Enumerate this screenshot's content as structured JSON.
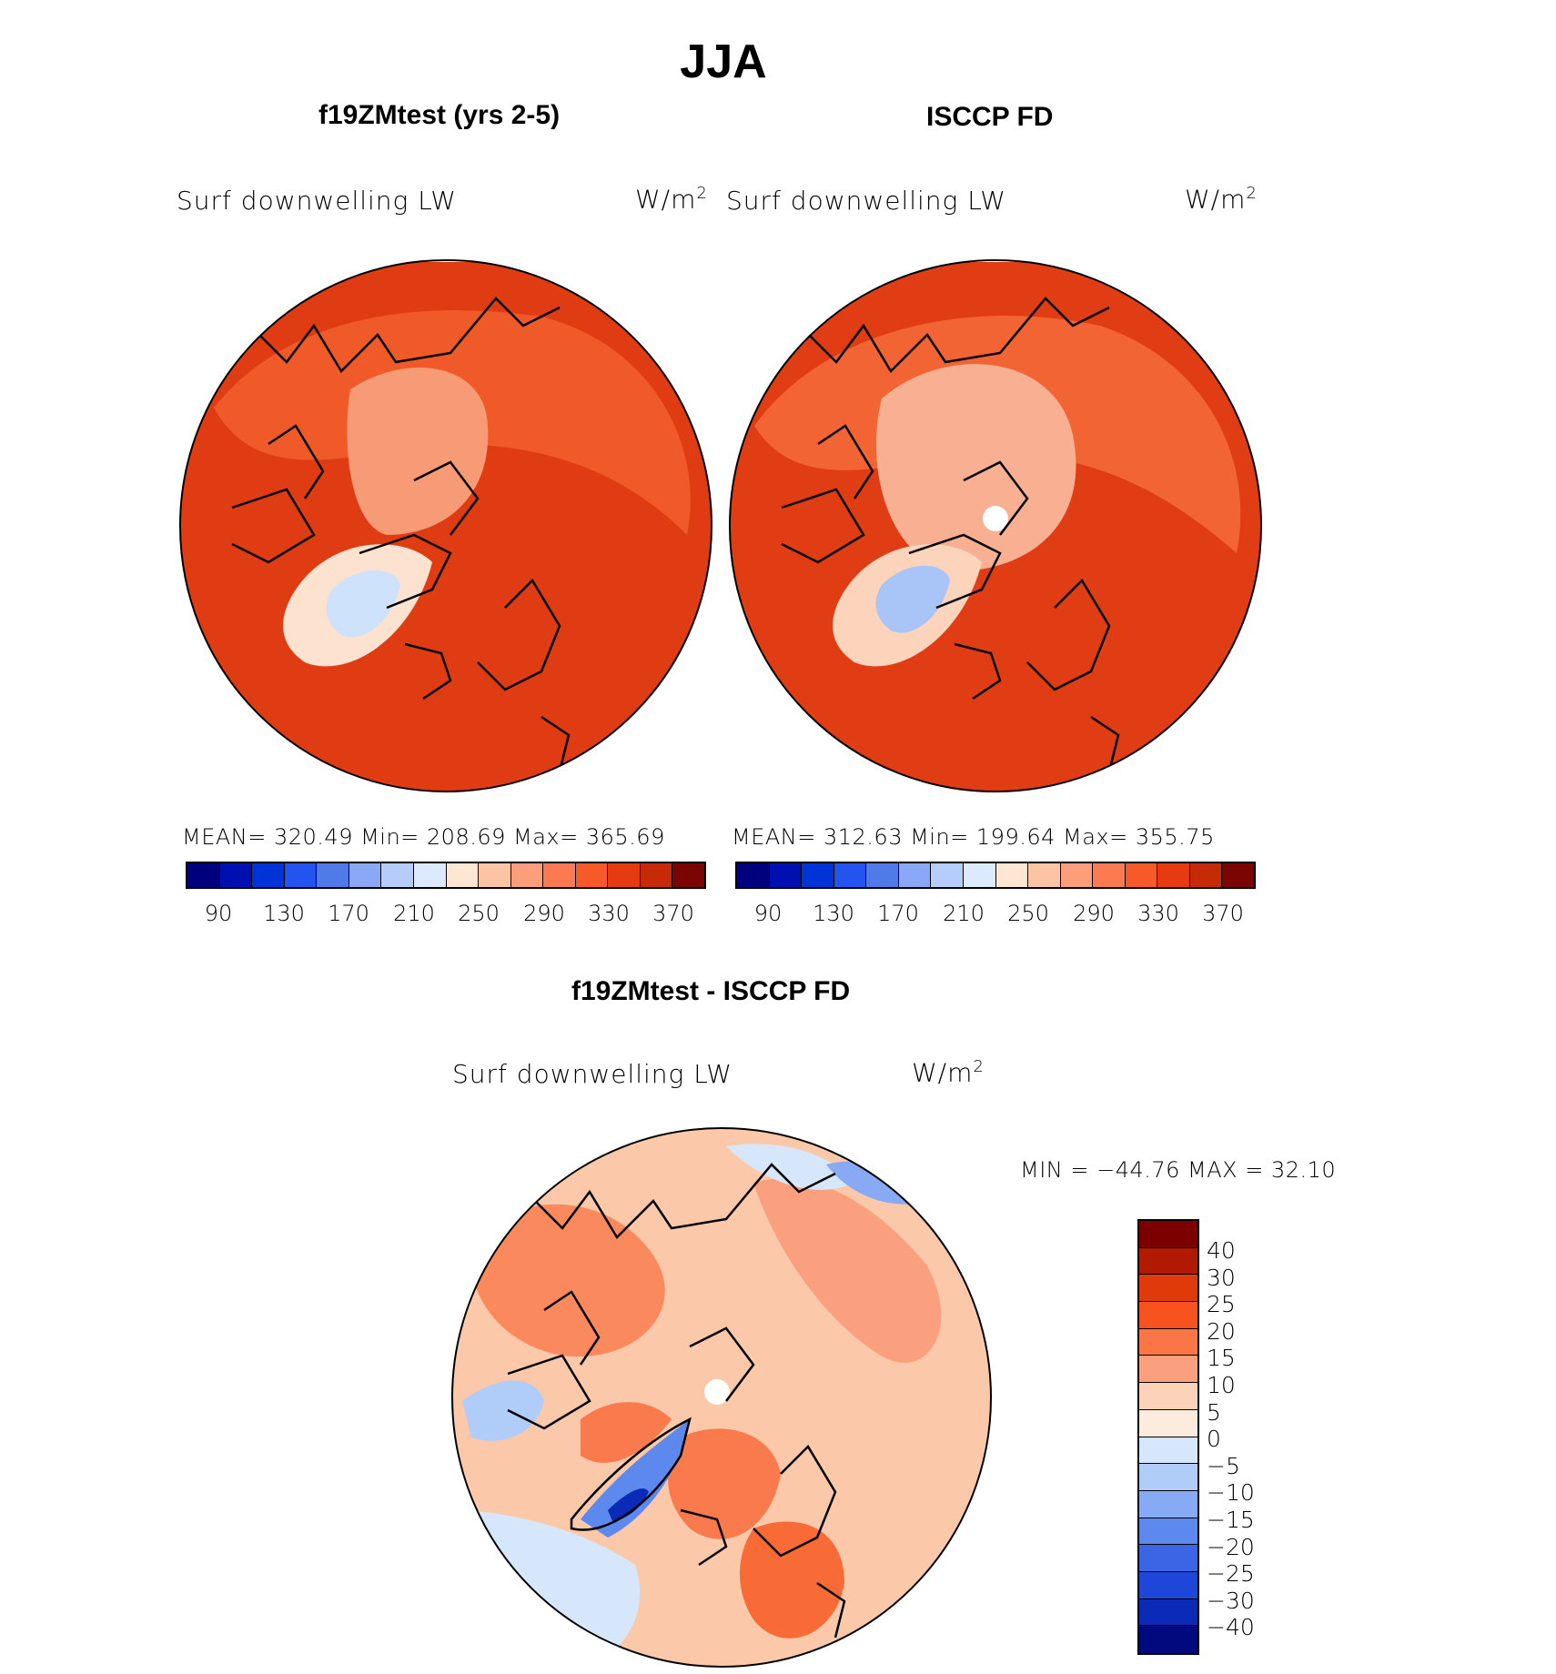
{
  "title": "JJA",
  "panels": [
    {
      "id": "model",
      "title": "f19ZMtest (yrs 2-5)",
      "subtitle": "Surf downwelling LW",
      "units": "W/m",
      "units_sup": "2",
      "stats": "MEAN=  320.49    Min=  208.69    Max=  365.69"
    },
    {
      "id": "obs",
      "title": "ISCCP FD",
      "subtitle": "Surf downwelling LW",
      "units": "W/m",
      "units_sup": "2",
      "stats": "MEAN=  312.63    Min=  199.64    Max=  355.75"
    },
    {
      "id": "diff",
      "title": "f19ZMtest - ISCCP FD",
      "subtitle": "Surf downwelling LW",
      "units": "W/m",
      "units_sup": "2",
      "stats": "MIN  =  −44.76  MAX  =    32.10"
    }
  ],
  "abs_colorbar": {
    "colors": [
      "#00007f",
      "#0010b0",
      "#0034d8",
      "#2255f0",
      "#4f7ae8",
      "#8aa8f5",
      "#b6cdfb",
      "#dbeafd",
      "#fee6d2",
      "#fdc3a5",
      "#fc9e79",
      "#fb7a4f",
      "#f75a28",
      "#e63b10",
      "#c72a06",
      "#a01a03",
      "#7a0502"
    ],
    "ticks": [
      "90",
      "130",
      "170",
      "210",
      "250",
      "290",
      "330",
      "370"
    ]
  },
  "diff_colorbar": {
    "colors": [
      "#7d0000",
      "#b21a00",
      "#e03a0a",
      "#f8531e",
      "#fa7646",
      "#fba07e",
      "#fcd2b8",
      "#fdecdd",
      "#d6e7fb",
      "#b0ccf9",
      "#88aaf4",
      "#5d88ee",
      "#3a66e6",
      "#1e46d8",
      "#0c2ab8",
      "#000a7f"
    ],
    "ticks": [
      "40",
      "30",
      "25",
      "20",
      "15",
      "10",
      "5",
      "0",
      "−5",
      "−10",
      "−15",
      "−20",
      "−25",
      "−30",
      "−40"
    ]
  },
  "map_colors": {
    "model_base": "#e8441a",
    "obs_base": "#e8441a",
    "diff_base": "#fbc9aa"
  }
}
